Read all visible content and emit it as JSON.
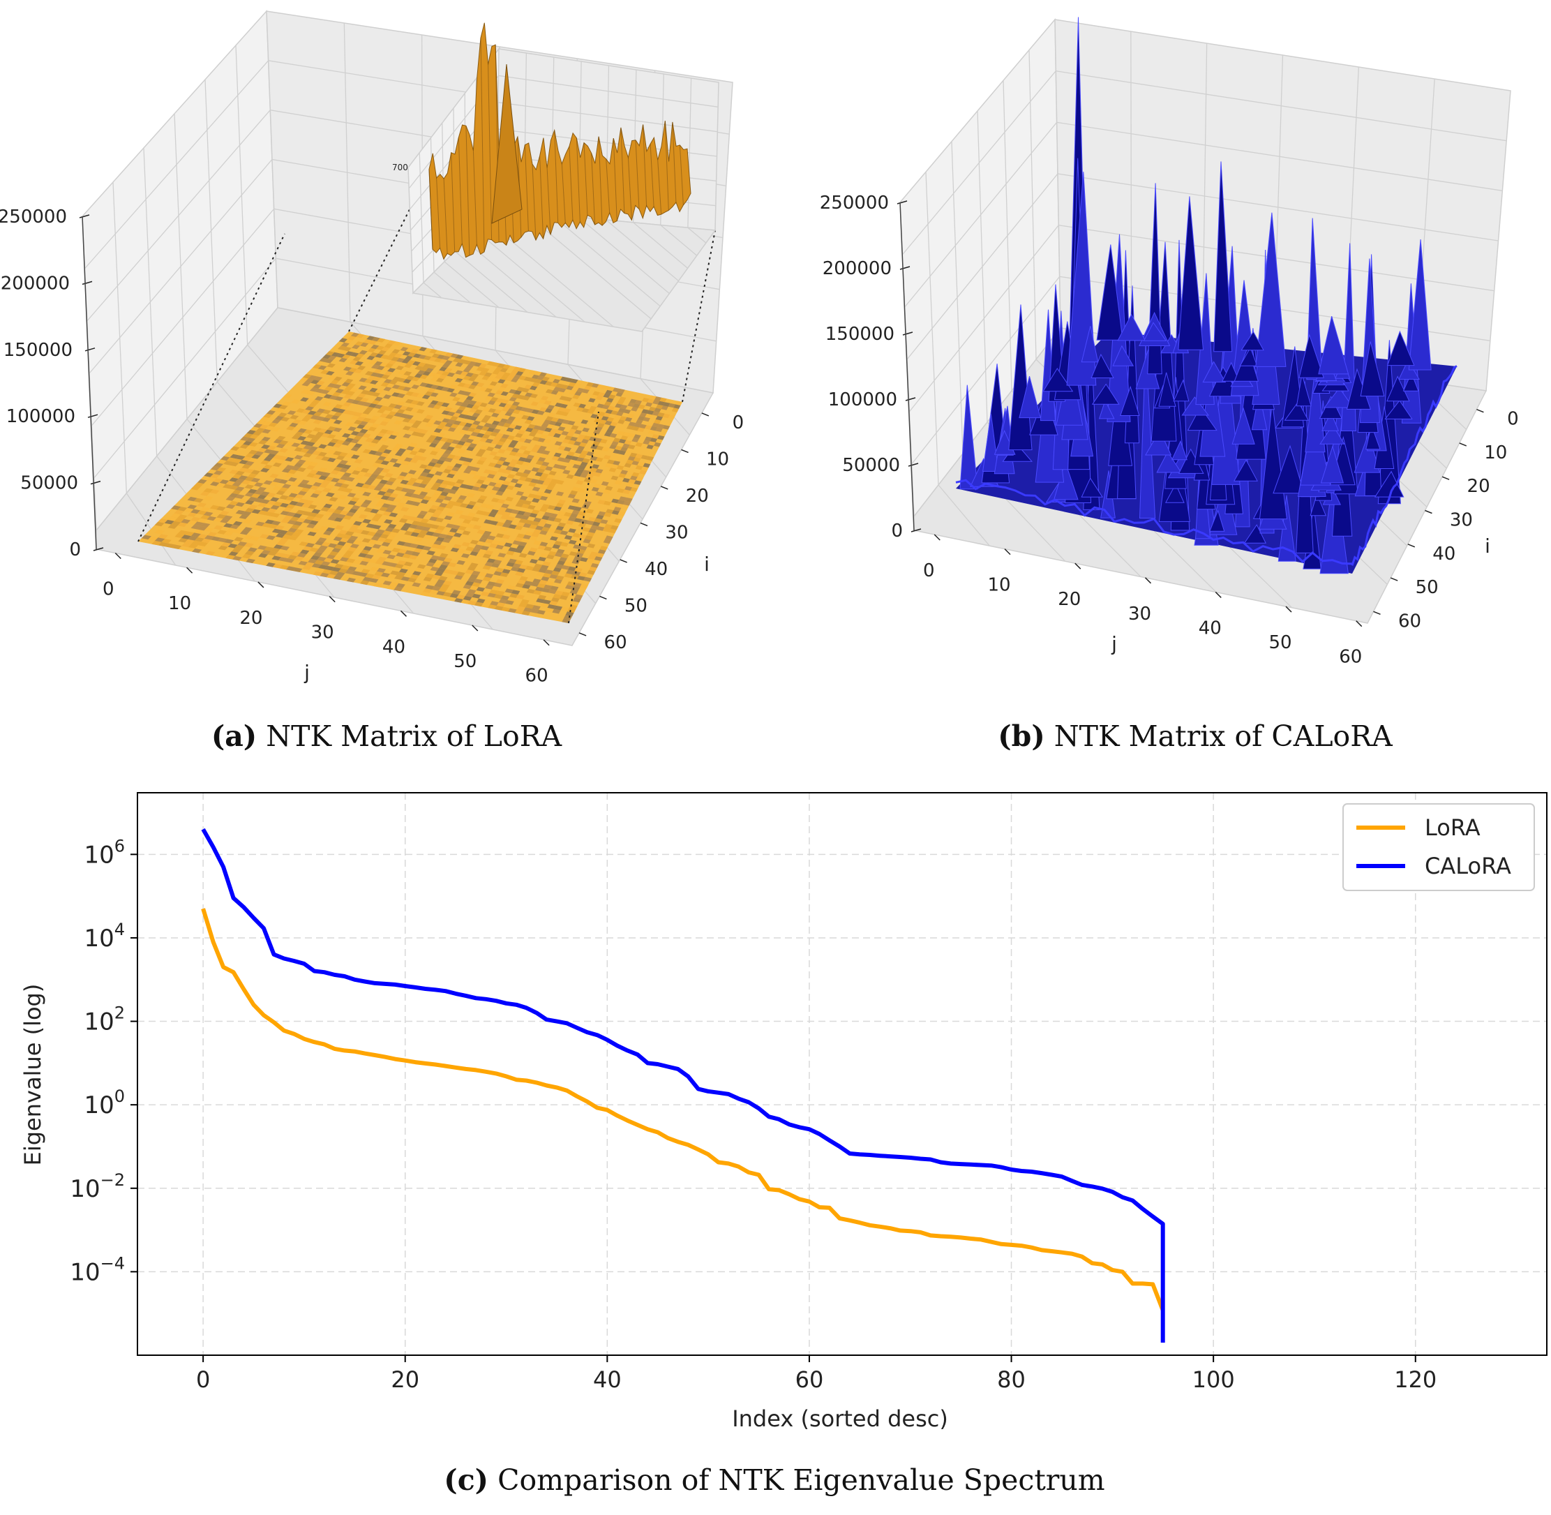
{
  "chart_data": [
    {
      "type": "surface3d",
      "panel": "a",
      "caption_label": "(a)",
      "caption_text": "NTK Matrix of LoRA",
      "xlabel": "j",
      "ylabel": "i",
      "z_ticks": [
        "0",
        "50000",
        "100000",
        "150000",
        "200000",
        "250000"
      ],
      "x_ticks": [
        "0",
        "10",
        "20",
        "30",
        "40",
        "50",
        "60"
      ],
      "y_ticks": [
        "0",
        "10",
        "20",
        "30",
        "40",
        "50",
        "60"
      ],
      "inset_tick": "700",
      "color": "#f5a623"
    },
    {
      "type": "surface3d",
      "panel": "b",
      "caption_label": "(b)",
      "caption_text": "NTK Matrix of CALoRA",
      "xlabel": "j",
      "ylabel": "i",
      "z_ticks": [
        "0",
        "50000",
        "100000",
        "150000",
        "200000",
        "250000"
      ],
      "x_ticks": [
        "0",
        "10",
        "20",
        "30",
        "40",
        "50",
        "60"
      ],
      "y_ticks": [
        "0",
        "10",
        "20",
        "30",
        "40",
        "50",
        "60"
      ],
      "color": "#1a1aff"
    },
    {
      "type": "line",
      "panel": "c",
      "caption_label": "(c)",
      "caption_text": "Comparison of NTK Eigenvalue Spectrum",
      "xlabel": "Index (sorted desc)",
      "ylabel": "Eigenvalue (log)",
      "xlim": [
        -6.5,
        133
      ],
      "ylim": [
        1e-06,
        30000000.0
      ],
      "yscale": "log",
      "x_ticks": [
        0,
        20,
        40,
        60,
        80,
        100,
        120
      ],
      "y_ticks": [
        {
          "base": "10",
          "exp": "6",
          "value": 1000000.0
        },
        {
          "base": "10",
          "exp": "4",
          "value": 10000.0
        },
        {
          "base": "10",
          "exp": "2",
          "value": 100.0
        },
        {
          "base": "10",
          "exp": "0",
          "value": 1
        },
        {
          "base": "10",
          "exp": "−2",
          "value": 0.01
        },
        {
          "base": "10",
          "exp": "−4",
          "value": 0.0001
        }
      ],
      "grid": true,
      "legend_position": "top-right",
      "series": [
        {
          "name": "LoRA",
          "color": "#ffa500",
          "points": [
            [
              0,
              50000
            ],
            [
              1,
              8000
            ],
            [
              2,
              2000
            ],
            [
              3,
              1500
            ],
            [
              4,
              600
            ],
            [
              5,
              250
            ],
            [
              6,
              140
            ],
            [
              7,
              95
            ],
            [
              8,
              60
            ],
            [
              9,
              50
            ],
            [
              10,
              38
            ],
            [
              11,
              32
            ],
            [
              12,
              28
            ],
            [
              13,
              22
            ],
            [
              14,
              20
            ],
            [
              15,
              19
            ],
            [
              16,
              17
            ],
            [
              17,
              15.5
            ],
            [
              18,
              14
            ],
            [
              19,
              12.5
            ],
            [
              20,
              11.5
            ],
            [
              21,
              10.5
            ],
            [
              22,
              9.8
            ],
            [
              23,
              9.2
            ],
            [
              24,
              8.5
            ],
            [
              25,
              7.8
            ],
            [
              26,
              7.2
            ],
            [
              27,
              6.8
            ],
            [
              28,
              6.2
            ],
            [
              29,
              5.6
            ],
            [
              30,
              4.8
            ],
            [
              31,
              4.0
            ],
            [
              32,
              3.8
            ],
            [
              33,
              3.4
            ],
            [
              34,
              2.9
            ],
            [
              35,
              2.6
            ],
            [
              36,
              2.2
            ],
            [
              37,
              1.6
            ],
            [
              38,
              1.2
            ],
            [
              39,
              0.85
            ],
            [
              40,
              0.75
            ],
            [
              41,
              0.55
            ],
            [
              42,
              0.42
            ],
            [
              43,
              0.33
            ],
            [
              44,
              0.26
            ],
            [
              45,
              0.22
            ],
            [
              46,
              0.16
            ],
            [
              47,
              0.13
            ],
            [
              48,
              0.11
            ],
            [
              49,
              0.085
            ],
            [
              50,
              0.065
            ],
            [
              51,
              0.042
            ],
            [
              52,
              0.039
            ],
            [
              53,
              0.033
            ],
            [
              54,
              0.024
            ],
            [
              55,
              0.021
            ],
            [
              56,
              0.0095
            ],
            [
              57,
              0.009
            ],
            [
              58,
              0.0072
            ],
            [
              59,
              0.0055
            ],
            [
              60,
              0.0048
            ],
            [
              61,
              0.0035
            ],
            [
              62,
              0.0034
            ],
            [
              63,
              0.0019
            ],
            [
              64,
              0.0017
            ],
            [
              65,
              0.0015
            ],
            [
              66,
              0.0013
            ],
            [
              67,
              0.0012
            ],
            [
              68,
              0.0011
            ],
            [
              69,
              0.00097
            ],
            [
              70,
              0.00094
            ],
            [
              71,
              0.00088
            ],
            [
              72,
              0.00074
            ],
            [
              73,
              0.00071
            ],
            [
              74,
              0.00069
            ],
            [
              75,
              0.00066
            ],
            [
              76,
              0.00062
            ],
            [
              77,
              0.00059
            ],
            [
              78,
              0.00052
            ],
            [
              79,
              0.00046
            ],
            [
              80,
              0.00044
            ],
            [
              81,
              0.00042
            ],
            [
              82,
              0.00038
            ],
            [
              83,
              0.00033
            ],
            [
              84,
              0.00031
            ],
            [
              85,
              0.00029
            ],
            [
              86,
              0.00027
            ],
            [
              87,
              0.00023
            ],
            [
              88,
              0.00016
            ],
            [
              89,
              0.00015
            ],
            [
              90,
              0.00011
            ],
            [
              91,
              0.0001
            ],
            [
              92,
              5.2e-05
            ],
            [
              93,
              5.2e-05
            ],
            [
              94,
              5e-05
            ],
            [
              95,
              1.2e-05
            ]
          ]
        },
        {
          "name": "CALoRA",
          "color": "#0000ff",
          "points": [
            [
              0,
              4000000
            ],
            [
              1,
              1500000
            ],
            [
              2,
              500000
            ],
            [
              3,
              90000
            ],
            [
              4,
              55000
            ],
            [
              5,
              30000
            ],
            [
              6,
              17000
            ],
            [
              7,
              4000
            ],
            [
              8,
              3200
            ],
            [
              9,
              2800
            ],
            [
              10,
              2400
            ],
            [
              11,
              1600
            ],
            [
              12,
              1500
            ],
            [
              13,
              1300
            ],
            [
              14,
              1200
            ],
            [
              15,
              1000
            ],
            [
              16,
              900
            ],
            [
              17,
              820
            ],
            [
              18,
              790
            ],
            [
              19,
              760
            ],
            [
              20,
              700
            ],
            [
              21,
              650
            ],
            [
              22,
              600
            ],
            [
              23,
              570
            ],
            [
              24,
              530
            ],
            [
              25,
              460
            ],
            [
              26,
              410
            ],
            [
              27,
              360
            ],
            [
              28,
              340
            ],
            [
              29,
              310
            ],
            [
              30,
              270
            ],
            [
              31,
              250
            ],
            [
              32,
              210
            ],
            [
              33,
              160
            ],
            [
              34,
              110
            ],
            [
              35,
              100
            ],
            [
              36,
              90
            ],
            [
              37,
              70
            ],
            [
              38,
              55
            ],
            [
              39,
              47
            ],
            [
              40,
              36
            ],
            [
              41,
              26
            ],
            [
              42,
              20
            ],
            [
              43,
              16
            ],
            [
              44,
              10
            ],
            [
              45,
              9.4
            ],
            [
              46,
              8.2
            ],
            [
              47,
              7.2
            ],
            [
              48,
              4.8
            ],
            [
              49,
              2.4
            ],
            [
              50,
              2.1
            ],
            [
              51,
              1.95
            ],
            [
              52,
              1.8
            ],
            [
              53,
              1.4
            ],
            [
              54,
              1.15
            ],
            [
              55,
              0.82
            ],
            [
              56,
              0.52
            ],
            [
              57,
              0.45
            ],
            [
              58,
              0.34
            ],
            [
              59,
              0.29
            ],
            [
              60,
              0.26
            ],
            [
              61,
              0.2
            ],
            [
              62,
              0.14
            ],
            [
              63,
              0.1
            ],
            [
              64,
              0.068
            ],
            [
              65,
              0.065
            ],
            [
              66,
              0.063
            ],
            [
              67,
              0.06
            ],
            [
              68,
              0.058
            ],
            [
              69,
              0.056
            ],
            [
              70,
              0.054
            ],
            [
              71,
              0.051
            ],
            [
              72,
              0.049
            ],
            [
              73,
              0.042
            ],
            [
              74,
              0.039
            ],
            [
              75,
              0.038
            ],
            [
              76,
              0.037
            ],
            [
              77,
              0.036
            ],
            [
              78,
              0.035
            ],
            [
              79,
              0.032
            ],
            [
              80,
              0.028
            ],
            [
              81,
              0.026
            ],
            [
              82,
              0.025
            ],
            [
              83,
              0.023
            ],
            [
              84,
              0.021
            ],
            [
              85,
              0.019
            ],
            [
              86,
              0.015
            ],
            [
              87,
              0.012
            ],
            [
              88,
              0.011
            ],
            [
              89,
              0.0098
            ],
            [
              90,
              0.0082
            ],
            [
              91,
              0.0061
            ],
            [
              92,
              0.0051
            ],
            [
              93,
              0.0032
            ],
            [
              94,
              0.0021
            ],
            [
              95,
              0.0014
            ],
            [
              95,
              2e-06
            ]
          ]
        }
      ]
    }
  ]
}
